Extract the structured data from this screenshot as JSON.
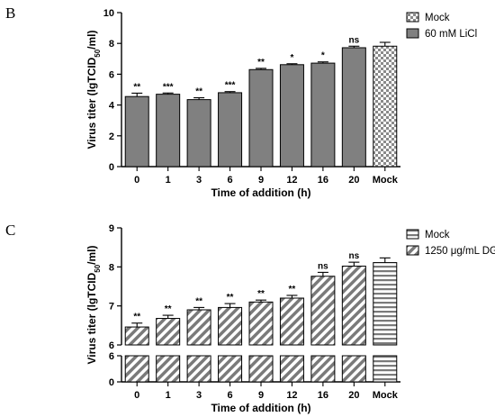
{
  "chart_data": [
    {
      "panel": "B",
      "type": "bar",
      "xlabel": "Time of addition (h)",
      "ylabel_main": "Virus titer (lgTCID",
      "ylabel_sub": "50",
      "ylabel_end": "/ml)",
      "ylim": [
        0,
        10
      ],
      "yticks": [
        "0",
        "2",
        "4",
        "6",
        "8",
        "10"
      ],
      "categories": [
        "0",
        "1",
        "3",
        "6",
        "9",
        "12",
        "16",
        "20",
        "Mock"
      ],
      "values": [
        4.55,
        4.7,
        4.35,
        4.8,
        6.3,
        6.62,
        6.72,
        7.72,
        7.82
      ],
      "errors": [
        0.22,
        0.08,
        0.12,
        0.07,
        0.08,
        0.06,
        0.08,
        0.1,
        0.25
      ],
      "significance": [
        "**",
        "***",
        "**",
        "***",
        "**",
        "*",
        "*",
        "ns",
        ""
      ],
      "legend": [
        {
          "label": "Mock",
          "pattern": "checker"
        },
        {
          "label": "60 mM LiCl",
          "pattern": "solid"
        }
      ],
      "colors": {
        "bar": "#808080"
      },
      "grid": false,
      "legend_position": "top-right"
    },
    {
      "panel": "C",
      "type": "bar",
      "xlabel": "Time of addition (h)",
      "ylabel_main": "Virus titer (lgTCID",
      "ylabel_sub": "50",
      "ylabel_end": "/ml)",
      "ylim": [
        6,
        9
      ],
      "axis_break": {
        "lower_range": [
          0,
          6
        ]
      },
      "yticks": [
        "6",
        "7",
        "8",
        "9"
      ],
      "lower_yticks": [
        "0",
        "6"
      ],
      "categories": [
        "0",
        "1",
        "3",
        "6",
        "9",
        "12",
        "16",
        "20",
        "Mock"
      ],
      "values": [
        6.46,
        6.68,
        6.9,
        6.96,
        7.1,
        7.2,
        7.76,
        8.02,
        8.11
      ],
      "errors": [
        0.1,
        0.08,
        0.06,
        0.1,
        0.05,
        0.07,
        0.1,
        0.1,
        0.12
      ],
      "significance": [
        "**",
        "**",
        "**",
        "**",
        "**",
        "**",
        "ns",
        "ns",
        ""
      ],
      "legend": [
        {
          "label": "Mock",
          "pattern": "horizontal"
        },
        {
          "label": "1250 μg/mL DG",
          "pattern": "diagonal"
        }
      ],
      "grid": false,
      "legend_position": "top-right"
    }
  ]
}
